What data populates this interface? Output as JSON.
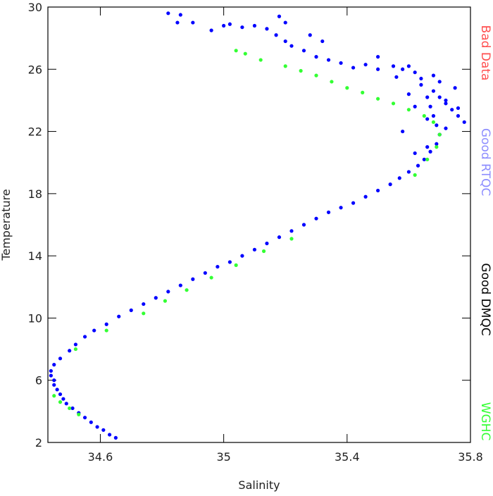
{
  "chart_data": {
    "type": "scatter",
    "x_label": "Salinity",
    "y_label": "Temperature",
    "xlim": [
      34.43,
      35.8
    ],
    "ylim": [
      2,
      30
    ],
    "xticks": [
      34.6,
      35.0,
      35.4,
      35.8
    ],
    "yticks": [
      2,
      6,
      10,
      14,
      18,
      22,
      26,
      30
    ],
    "series": [
      {
        "name": "Bad Data",
        "color": "#ff4d4d",
        "x": [],
        "values": []
      },
      {
        "name": "Good RTQC",
        "color": "#8c8cff",
        "marker_color": "#0000ff",
        "x": [
          34.65,
          34.63,
          34.61,
          34.59,
          34.57,
          34.55,
          34.53,
          34.51,
          34.49,
          34.48,
          34.47,
          34.46,
          34.45,
          34.45,
          34.44,
          34.44,
          34.45,
          34.47,
          34.5,
          34.52,
          34.55,
          34.58,
          34.62,
          34.66,
          34.7,
          34.74,
          34.78,
          34.82,
          34.86,
          34.9,
          34.94,
          34.98,
          35.02,
          35.06,
          35.1,
          35.14,
          35.18,
          35.22,
          35.26,
          35.3,
          35.34,
          35.38,
          35.42,
          35.46,
          35.5,
          35.54,
          35.57,
          35.6,
          35.63,
          35.65,
          35.67,
          35.69,
          35.7,
          35.69,
          35.68,
          35.67,
          35.66,
          35.68,
          35.7,
          35.72,
          35.74,
          35.76,
          35.78,
          35.72,
          35.66,
          35.62,
          35.6,
          35.64,
          35.7,
          35.75,
          35.68,
          35.62,
          35.58,
          35.55,
          35.5,
          35.46,
          35.42,
          35.38,
          35.34,
          35.3,
          35.26,
          35.22,
          35.2,
          35.17,
          35.14,
          35.1,
          35.06,
          35.02,
          35.0,
          34.96,
          34.9,
          34.85,
          34.82,
          34.86,
          35.18,
          35.2,
          35.28,
          35.32,
          35.5,
          35.56,
          35.6,
          35.64,
          35.72,
          35.76,
          35.7,
          35.66,
          35.62,
          35.58
        ],
        "values": [
          2.3,
          2.5,
          2.8,
          3.0,
          3.3,
          3.6,
          3.9,
          4.2,
          4.5,
          4.8,
          5.1,
          5.4,
          5.7,
          6.0,
          6.3,
          6.6,
          7.0,
          7.4,
          7.9,
          8.3,
          8.8,
          9.2,
          9.6,
          10.1,
          10.5,
          10.9,
          11.3,
          11.7,
          12.1,
          12.5,
          12.9,
          13.3,
          13.6,
          14.0,
          14.4,
          14.8,
          15.2,
          15.6,
          16.0,
          16.4,
          16.8,
          17.1,
          17.4,
          17.8,
          18.2,
          18.6,
          19.0,
          19.4,
          19.8,
          20.2,
          20.7,
          21.2,
          21.8,
          22.4,
          23.0,
          23.6,
          24.2,
          24.6,
          24.2,
          23.8,
          23.4,
          23.0,
          22.6,
          22.2,
          22.8,
          23.6,
          24.4,
          25.0,
          25.2,
          24.8,
          25.6,
          25.8,
          26.0,
          26.2,
          26.0,
          26.3,
          26.1,
          26.4,
          26.6,
          26.8,
          27.2,
          27.5,
          27.8,
          28.2,
          28.6,
          28.8,
          28.7,
          28.9,
          28.8,
          28.5,
          29.0,
          29.0,
          29.6,
          29.5,
          29.4,
          29.0,
          28.2,
          27.8,
          26.8,
          25.5,
          26.2,
          25.4,
          24.0,
          23.5,
          21.8,
          21.0,
          20.6,
          22.0
        ]
      },
      {
        "name": "Good DMQC",
        "color": "#000000",
        "x": [],
        "values": []
      },
      {
        "name": "WGHC",
        "color": "#33ff33",
        "x": [
          34.45,
          34.47,
          34.5,
          34.53,
          34.52,
          34.62,
          34.74,
          34.81,
          34.88,
          34.96,
          35.04,
          35.13,
          35.22,
          35.62,
          35.66,
          35.69,
          35.7,
          35.68,
          35.65,
          35.6,
          35.55,
          35.5,
          35.45,
          35.4,
          35.35,
          35.3,
          35.25,
          35.2,
          35.12,
          35.07,
          35.04
        ],
        "values": [
          5.0,
          4.6,
          4.2,
          3.8,
          8.0,
          9.2,
          10.3,
          11.1,
          11.8,
          12.6,
          13.4,
          14.3,
          15.1,
          19.2,
          20.2,
          21.0,
          21.8,
          22.6,
          23.0,
          23.4,
          23.8,
          24.1,
          24.5,
          24.8,
          25.2,
          25.6,
          25.9,
          26.2,
          26.6,
          27.0,
          27.2
        ]
      }
    ]
  }
}
